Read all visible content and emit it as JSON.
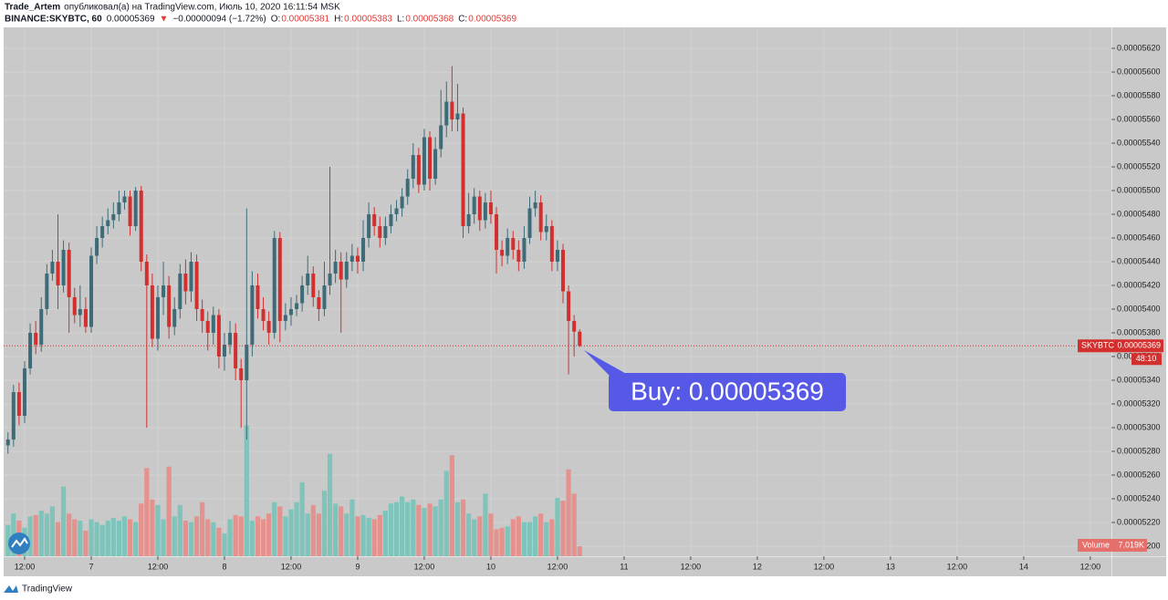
{
  "header": {
    "author": "Trade_Artem",
    "line1": "опубликовал(а) на TradingView.com, Июль 10, 2020 16:11:54 MSK",
    "line2": [
      {
        "text": "BINANCE:SKYBTC, 60",
        "color": "#131722",
        "bold": true
      },
      {
        "text": "0.00005369",
        "color": "#131722"
      },
      {
        "text": "▼",
        "color": "#e53935"
      },
      {
        "text": "−0.00000094 (−1.72%)",
        "color": "#131722"
      },
      {
        "text": "O:",
        "color": "#131722"
      },
      {
        "text": "0.00005381",
        "color": "#e53935"
      },
      {
        "text": "H:",
        "color": "#131722"
      },
      {
        "text": "0.00005383",
        "color": "#e53935"
      },
      {
        "text": "L:",
        "color": "#131722"
      },
      {
        "text": "0.00005368",
        "color": "#e53935"
      },
      {
        "text": "C:",
        "color": "#131722"
      },
      {
        "text": "0.00005369",
        "color": "#e53935"
      }
    ]
  },
  "chart_data": {
    "type": "candlestick",
    "grid": true,
    "up_color": "#3d6b78",
    "down_color": "#d32f2f",
    "volume_up_color": "#7fc4ba",
    "volume_down_color": "#e5918d",
    "x": [
      9,
      10,
      11,
      12,
      13,
      14,
      15,
      16,
      17,
      18,
      19,
      20,
      21,
      22,
      23,
      24,
      25,
      26,
      27,
      28,
      29,
      30,
      31,
      32,
      33,
      34,
      35,
      36,
      37,
      38,
      39,
      40,
      41,
      42,
      43,
      44,
      45,
      46,
      47,
      48,
      49,
      50,
      51,
      52,
      53,
      54,
      55,
      56,
      57,
      58,
      59,
      60,
      61,
      62,
      63,
      64,
      65,
      66,
      67,
      68,
      69,
      70,
      71,
      72,
      73,
      74,
      75,
      76,
      77,
      78,
      79,
      80,
      81,
      82,
      83,
      84,
      85,
      86,
      87,
      88,
      89,
      90,
      91,
      92,
      93,
      94,
      95,
      96,
      97,
      98,
      99,
      100,
      101,
      102,
      103,
      104,
      105,
      106,
      107,
      108,
      109,
      110,
      111,
      112
    ],
    "open": [
      5.285e-05,
      5.29e-05,
      5.33e-05,
      5.31e-05,
      5.35e-05,
      5.38e-05,
      5.37e-05,
      5.4e-05,
      5.43e-05,
      5.44e-05,
      5.42e-05,
      5.45e-05,
      5.41e-05,
      5.395e-05,
      5.4e-05,
      5.385e-05,
      5.445e-05,
      5.46e-05,
      5.47e-05,
      5.475e-05,
      5.48e-05,
      5.49e-05,
      5.495e-05,
      5.47e-05,
      5.5e-05,
      5.44e-05,
      5.42e-05,
      5.375e-05,
      5.41e-05,
      5.42e-05,
      5.385e-05,
      5.4e-05,
      5.43e-05,
      5.415e-05,
      5.44e-05,
      5.4e-05,
      5.39e-05,
      5.38e-05,
      5.395e-05,
      5.36e-05,
      5.37e-05,
      5.38e-05,
      5.35e-05,
      5.34e-05,
      5.37e-05,
      5.42e-05,
      5.4e-05,
      5.39e-05,
      5.38e-05,
      5.46e-05,
      5.39e-05,
      5.395e-05,
      5.4e-05,
      5.405e-05,
      5.42e-05,
      5.43e-05,
      5.41e-05,
      5.4e-05,
      5.42e-05,
      5.43e-05,
      5.44e-05,
      5.425e-05,
      5.44e-05,
      5.445e-05,
      5.44e-05,
      5.46e-05,
      5.48e-05,
      5.47e-05,
      5.46e-05,
      5.47e-05,
      5.48e-05,
      5.485e-05,
      5.495e-05,
      5.51e-05,
      5.53e-05,
      5.505e-05,
      5.545e-05,
      5.51e-05,
      5.535e-05,
      5.555e-05,
      5.575e-05,
      5.56e-05,
      5.565e-05,
      5.47e-05,
      5.48e-05,
      5.495e-05,
      5.475e-05,
      5.49e-05,
      5.48e-05,
      5.45e-05,
      5.445e-05,
      5.46e-05,
      5.45e-05,
      5.44e-05,
      5.46e-05,
      5.485e-05,
      5.49e-05,
      5.465e-05,
      5.47e-05,
      5.44e-05,
      5.45e-05,
      5.415e-05,
      5.39e-05,
      5.381e-05
    ],
    "high": [
      5.296e-05,
      5.336e-05,
      5.338e-05,
      5.356e-05,
      5.388e-05,
      5.39e-05,
      5.41e-05,
      5.438e-05,
      5.45e-05,
      5.48e-05,
      5.458e-05,
      5.456e-05,
      5.418e-05,
      5.42e-05,
      5.41e-05,
      5.452e-05,
      5.47e-05,
      5.478e-05,
      5.485e-05,
      5.49e-05,
      5.5e-05,
      5.5e-05,
      5.5e-05,
      5.503e-05,
      5.504e-05,
      5.446e-05,
      5.43e-05,
      5.42e-05,
      5.44e-05,
      5.428e-05,
      5.41e-05,
      5.438e-05,
      5.442e-05,
      5.448e-05,
      5.446e-05,
      5.408e-05,
      5.398e-05,
      5.402e-05,
      5.4e-05,
      5.38e-05,
      5.39e-05,
      5.388e-05,
      5.358e-05,
      5.485e-05,
      5.432e-05,
      5.43e-05,
      5.41e-05,
      5.398e-05,
      5.466e-05,
      5.465e-05,
      5.405e-05,
      5.41e-05,
      5.412e-05,
      5.428e-05,
      5.445e-05,
      5.436e-05,
      5.416e-05,
      5.44e-05,
      5.52e-05,
      5.45e-05,
      5.448e-05,
      5.448e-05,
      5.455e-05,
      5.452e-05,
      5.475e-05,
      5.49e-05,
      5.486e-05,
      5.478e-05,
      5.478e-05,
      5.488e-05,
      5.492e-05,
      5.502e-05,
      5.518e-05,
      5.54e-05,
      5.536e-05,
      5.552e-05,
      5.55e-05,
      5.545e-05,
      5.585e-05,
      5.592e-05,
      5.605e-05,
      5.59e-05,
      5.57e-05,
      5.498e-05,
      5.502e-05,
      5.5e-05,
      5.498e-05,
      5.5e-05,
      5.486e-05,
      5.458e-05,
      5.468e-05,
      5.466e-05,
      5.458e-05,
      5.47e-05,
      5.495e-05,
      5.5e-05,
      5.496e-05,
      5.48e-05,
      5.475e-05,
      5.458e-05,
      5.455e-05,
      5.42e-05,
      5.395e-05,
      5.383e-05
    ],
    "low": [
      5.278e-05,
      5.284e-05,
      5.302e-05,
      5.304e-05,
      5.345e-05,
      5.362e-05,
      5.364e-05,
      5.395e-05,
      5.424e-05,
      5.4e-05,
      5.414e-05,
      5.38e-05,
      5.388e-05,
      5.385e-05,
      5.38e-05,
      5.38e-05,
      5.438e-05,
      5.452e-05,
      5.463e-05,
      5.468e-05,
      5.474e-05,
      5.484e-05,
      5.462e-05,
      5.466e-05,
      5.432e-05,
      5.3e-05,
      5.368e-05,
      5.365e-05,
      5.395e-05,
      5.375e-05,
      5.378e-05,
      5.392e-05,
      5.404e-05,
      5.406e-05,
      5.39e-05,
      5.38e-05,
      5.365e-05,
      5.37e-05,
      5.35e-05,
      5.348e-05,
      5.362e-05,
      5.34e-05,
      5.3e-05,
      5.29e-05,
      5.36e-05,
      5.392e-05,
      5.382e-05,
      5.37e-05,
      5.375e-05,
      5.372e-05,
      5.382e-05,
      5.386e-05,
      5.394e-05,
      5.398e-05,
      5.412e-05,
      5.402e-05,
      5.39e-05,
      5.394e-05,
      5.412e-05,
      5.422e-05,
      5.38e-05,
      5.418e-05,
      5.432e-05,
      5.43e-05,
      5.432e-05,
      5.452e-05,
      5.462e-05,
      5.452e-05,
      5.454e-05,
      5.464e-05,
      5.474e-05,
      5.478e-05,
      5.488e-05,
      5.502e-05,
      5.498e-05,
      5.5e-05,
      5.5e-05,
      5.505e-05,
      5.528e-05,
      5.545e-05,
      5.55e-05,
      5.55e-05,
      5.46e-05,
      5.464e-05,
      5.472e-05,
      5.466e-05,
      5.468e-05,
      5.472e-05,
      5.43e-05,
      5.436e-05,
      5.438e-05,
      5.442e-05,
      5.432e-05,
      5.434e-05,
      5.455e-05,
      5.478e-05,
      5.458e-05,
      5.458e-05,
      5.432e-05,
      5.432e-05,
      5.405e-05,
      5.345e-05,
      5.36e-05,
      5.368e-05
    ],
    "close": [
      5.29e-05,
      5.33e-05,
      5.31e-05,
      5.35e-05,
      5.38e-05,
      5.37e-05,
      5.4e-05,
      5.43e-05,
      5.44e-05,
      5.42e-05,
      5.45e-05,
      5.41e-05,
      5.395e-05,
      5.4e-05,
      5.385e-05,
      5.445e-05,
      5.46e-05,
      5.47e-05,
      5.475e-05,
      5.48e-05,
      5.49e-05,
      5.495e-05,
      5.47e-05,
      5.5e-05,
      5.44e-05,
      5.42e-05,
      5.375e-05,
      5.41e-05,
      5.42e-05,
      5.385e-05,
      5.4e-05,
      5.43e-05,
      5.415e-05,
      5.44e-05,
      5.4e-05,
      5.39e-05,
      5.38e-05,
      5.395e-05,
      5.36e-05,
      5.37e-05,
      5.38e-05,
      5.35e-05,
      5.34e-05,
      5.37e-05,
      5.42e-05,
      5.4e-05,
      5.39e-05,
      5.38e-05,
      5.46e-05,
      5.39e-05,
      5.395e-05,
      5.4e-05,
      5.405e-05,
      5.42e-05,
      5.43e-05,
      5.41e-05,
      5.4e-05,
      5.42e-05,
      5.43e-05,
      5.44e-05,
      5.425e-05,
      5.44e-05,
      5.445e-05,
      5.44e-05,
      5.46e-05,
      5.48e-05,
      5.47e-05,
      5.46e-05,
      5.47e-05,
      5.48e-05,
      5.485e-05,
      5.495e-05,
      5.51e-05,
      5.53e-05,
      5.505e-05,
      5.545e-05,
      5.51e-05,
      5.535e-05,
      5.555e-05,
      5.575e-05,
      5.56e-05,
      5.565e-05,
      5.47e-05,
      5.48e-05,
      5.495e-05,
      5.475e-05,
      5.49e-05,
      5.48e-05,
      5.45e-05,
      5.445e-05,
      5.46e-05,
      5.45e-05,
      5.44e-05,
      5.46e-05,
      5.485e-05,
      5.49e-05,
      5.465e-05,
      5.47e-05,
      5.44e-05,
      5.45e-05,
      5.415e-05,
      5.39e-05,
      5.381e-05,
      5.369e-05
    ],
    "volume": [
      22000,
      30000,
      25000,
      20000,
      28000,
      29000,
      32000,
      30000,
      35000,
      24000,
      49000,
      30000,
      26000,
      25000,
      18000,
      26000,
      24000,
      22000,
      25000,
      27000,
      25000,
      28000,
      26000,
      24000,
      37000,
      62000,
      40000,
      36000,
      26000,
      63000,
      28000,
      36000,
      25000,
      24000,
      28000,
      38000,
      26000,
      24000,
      20000,
      16000,
      26000,
      29000,
      28000,
      92000,
      25000,
      28000,
      26000,
      30000,
      38000,
      35000,
      28000,
      33000,
      38000,
      52000,
      30000,
      36000,
      30000,
      46000,
      72000,
      37000,
      35000,
      30000,
      40000,
      28000,
      29000,
      27000,
      26000,
      29000,
      32000,
      37000,
      38000,
      42000,
      38000,
      40000,
      36000,
      34000,
      37000,
      35000,
      40000,
      60000,
      71000,
      38000,
      40000,
      30000,
      26000,
      28000,
      44000,
      30000,
      19000,
      20000,
      21000,
      26000,
      28000,
      24000,
      24000,
      28000,
      30000,
      24000,
      26000,
      41000,
      39000,
      61000,
      44000,
      7019
    ],
    "vlim": [
      0,
      100000
    ],
    "xlim": [
      8.22,
      207.8
    ],
    "xticks": [
      {
        "value": 12,
        "label": "12:00"
      },
      {
        "value": 24,
        "label": "7"
      },
      {
        "value": 36,
        "label": "12:00"
      },
      {
        "value": 48,
        "label": "8"
      },
      {
        "value": 60,
        "label": "12:00"
      },
      {
        "value": 72,
        "label": "9"
      },
      {
        "value": 84,
        "label": "12:00"
      },
      {
        "value": 96,
        "label": "10"
      },
      {
        "value": 108,
        "label": "12:00"
      },
      {
        "value": 120,
        "label": "11"
      },
      {
        "value": 132,
        "label": "12:00"
      },
      {
        "value": 144,
        "label": "12"
      },
      {
        "value": 156,
        "label": "12:00"
      },
      {
        "value": 168,
        "label": "13"
      },
      {
        "value": 180,
        "label": "12:00"
      },
      {
        "value": 192,
        "label": "14"
      },
      {
        "value": 204,
        "label": "12:00"
      }
    ],
    "ylim": [
      5.1915e-05,
      5.6377e-05
    ],
    "yticks": [
      {
        "value": 5.2e-05,
        "label": "0.00005200"
      },
      {
        "value": 5.22e-05,
        "label": "0.00005220"
      },
      {
        "value": 5.24e-05,
        "label": "0.00005240"
      },
      {
        "value": 5.26e-05,
        "label": "0.00005260"
      },
      {
        "value": 5.28e-05,
        "label": "0.00005280"
      },
      {
        "value": 5.3e-05,
        "label": "0.00005300"
      },
      {
        "value": 5.32e-05,
        "label": "0.00005320"
      },
      {
        "value": 5.34e-05,
        "label": "0.00005340"
      },
      {
        "value": 5.36e-05,
        "label": "0.00005360"
      },
      {
        "value": 5.38e-05,
        "label": "0.00005380"
      },
      {
        "value": 5.4e-05,
        "label": "0.00005400"
      },
      {
        "value": 5.42e-05,
        "label": "0.00005420"
      },
      {
        "value": 5.44e-05,
        "label": "0.00005440"
      },
      {
        "value": 5.46e-05,
        "label": "0.00005460"
      },
      {
        "value": 5.48e-05,
        "label": "0.00005480"
      },
      {
        "value": 5.5e-05,
        "label": "0.00005500"
      },
      {
        "value": 5.52e-05,
        "label": "0.00005520"
      },
      {
        "value": 5.54e-05,
        "label": "0.00005540"
      },
      {
        "value": 5.56e-05,
        "label": "0.00005560"
      },
      {
        "value": 5.58e-05,
        "label": "0.00005580"
      },
      {
        "value": 5.6e-05,
        "label": "0.00005600"
      },
      {
        "value": 5.62e-05,
        "label": "0.00005620"
      }
    ],
    "price_tag": {
      "symbol": "SKYBTC",
      "price": "0.00005369",
      "countdown": "48:10"
    },
    "volume_tag": {
      "name": "Volume",
      "value": "7.019K"
    },
    "annotation": "Buy: 0.00005369"
  },
  "footer": "TradingView"
}
